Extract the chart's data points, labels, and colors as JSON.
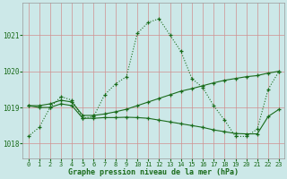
{
  "line1_x": [
    0,
    1,
    2,
    3,
    4,
    5,
    6,
    7,
    8,
    9,
    10,
    11,
    12,
    13,
    14,
    15,
    16,
    17,
    18,
    19,
    20,
    21,
    22,
    23
  ],
  "line1_y": [
    1018.2,
    1018.45,
    1019.0,
    1019.3,
    1019.2,
    1018.7,
    1018.75,
    1019.35,
    1019.65,
    1019.85,
    1021.05,
    1021.35,
    1021.45,
    1021.0,
    1020.55,
    1019.8,
    1019.55,
    1019.05,
    1018.65,
    1018.2,
    1018.2,
    1018.4,
    1019.5,
    1020.0
  ],
  "line2_x": [
    0,
    1,
    2,
    3,
    4,
    5,
    6,
    7,
    8,
    9,
    10,
    11,
    12,
    13,
    14,
    15,
    16,
    17,
    18,
    19,
    20,
    21,
    22,
    23
  ],
  "line2_y": [
    1019.05,
    1019.05,
    1019.1,
    1019.2,
    1019.15,
    1018.78,
    1018.78,
    1018.82,
    1018.88,
    1018.95,
    1019.05,
    1019.15,
    1019.25,
    1019.35,
    1019.45,
    1019.52,
    1019.6,
    1019.68,
    1019.75,
    1019.8,
    1019.85,
    1019.88,
    1019.95,
    1020.0
  ],
  "line3_x": [
    0,
    1,
    2,
    3,
    4,
    5,
    6,
    7,
    8,
    9,
    10,
    11,
    12,
    13,
    14,
    15,
    16,
    17,
    18,
    19,
    20,
    21,
    22,
    23
  ],
  "line3_y": [
    1019.05,
    1019.0,
    1019.0,
    1019.1,
    1019.05,
    1018.7,
    1018.7,
    1018.72,
    1018.72,
    1018.73,
    1018.72,
    1018.7,
    1018.65,
    1018.6,
    1018.55,
    1018.5,
    1018.45,
    1018.38,
    1018.33,
    1018.28,
    1018.27,
    1018.27,
    1018.75,
    1018.95
  ],
  "line_color": "#1a6b1a",
  "bg_color": "#cce8e8",
  "grid_color": "#d09090",
  "xlabel": "Graphe pression niveau de la mer (hPa)",
  "yticks": [
    1018,
    1019,
    1020,
    1021
  ],
  "xticks": [
    0,
    1,
    2,
    3,
    4,
    5,
    6,
    7,
    8,
    9,
    10,
    11,
    12,
    13,
    14,
    15,
    16,
    17,
    18,
    19,
    20,
    21,
    22,
    23
  ],
  "ylim": [
    1017.6,
    1021.9
  ],
  "xlim": [
    -0.5,
    23.5
  ]
}
